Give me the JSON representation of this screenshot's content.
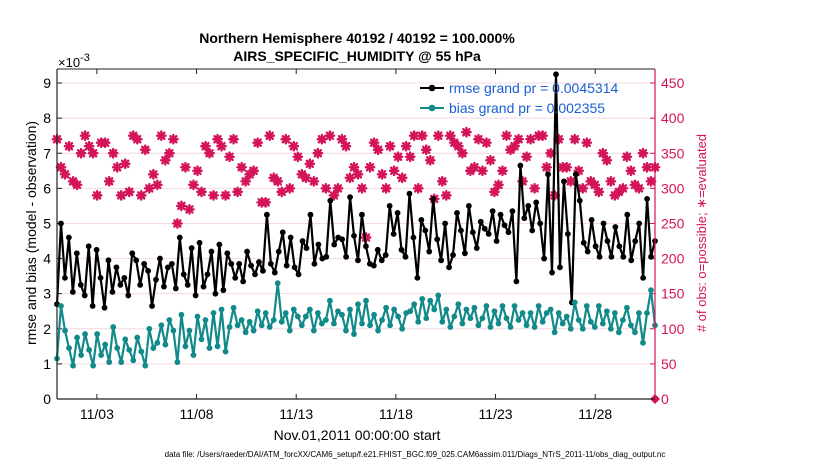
{
  "chart_data": {
    "type": "line",
    "title": "Northern Hemisphere 40192 / 40192 = 100.000%",
    "subtitle": "AIRS_SPECIFIC_HUMIDITY @ 55 hPa",
    "xlabel": "Nov.01,2011 00:00:00 start",
    "ylabel": "rmse and bias (model - observation)",
    "y2label": "# of obs: o=possible; ∗=evaluated",
    "exponent_label": "×10",
    "exponent_value": "-3",
    "xlim": [
      1,
      31
    ],
    "ylim": [
      0,
      9.4
    ],
    "y2lim": [
      0,
      470
    ],
    "x_ticks": [
      3,
      8,
      13,
      18,
      23,
      28
    ],
    "x_tick_labels": [
      "11/03",
      "11/08",
      "11/13",
      "11/18",
      "11/23",
      "11/28"
    ],
    "y_ticks": [
      0,
      1,
      2,
      3,
      4,
      5,
      6,
      7,
      8,
      9
    ],
    "y_tick_labels": [
      "0",
      "1",
      "2",
      "3",
      "4",
      "5",
      "6",
      "7",
      "8",
      "9"
    ],
    "y2_ticks": [
      0,
      50,
      100,
      150,
      200,
      250,
      300,
      350,
      400,
      450
    ],
    "y2_tick_labels": [
      "0",
      "50",
      "100",
      "150",
      "200",
      "250",
      "300",
      "350",
      "400",
      "450"
    ],
    "legend_position": "top-right",
    "series": [
      {
        "name": "rmse grand pr = 0.0045314",
        "color": "#000000",
        "marker": "circle",
        "values": [
          2.7,
          5.0,
          3.45,
          4.6,
          3.05,
          4.15,
          3.25,
          2.95,
          4.35,
          2.65,
          4.25,
          3.45,
          2.6,
          3.95,
          3.05,
          3.75,
          3.25,
          3.45,
          2.95,
          4.15,
          3.95,
          3.25,
          3.85,
          3.65,
          2.65,
          3.4,
          4.0,
          3.2,
          3.75,
          3.85,
          3.15,
          4.6,
          3.55,
          3.25,
          4.3,
          2.95,
          4.45,
          3.2,
          3.55,
          4.2,
          3.0,
          4.4,
          3.1,
          4.15,
          3.85,
          3.45,
          3.85,
          3.35,
          4.2,
          3.8,
          3.55,
          3.9,
          3.65,
          5.25,
          3.85,
          3.6,
          4.2,
          4.75,
          3.8,
          4.6,
          3.75,
          3.55,
          4.5,
          4.3,
          5.25,
          3.85,
          4.4,
          4.0,
          4.05,
          5.65,
          4.4,
          4.6,
          4.55,
          4.05,
          5.75,
          4.65,
          3.95,
          5.25,
          4.35,
          3.85,
          3.8,
          4.25,
          3.95,
          4.1,
          5.5,
          4.7,
          5.3,
          4.25,
          4.05,
          5.85,
          4.6,
          3.45,
          5.1,
          4.8,
          4.2,
          5.7,
          4.55,
          3.95,
          5.0,
          3.75,
          4.1,
          5.3,
          4.8,
          4.15,
          5.5,
          4.75,
          4.3,
          5.05,
          4.85,
          4.7,
          5.35,
          4.5,
          5.25,
          4.95,
          4.75,
          5.35,
          3.35,
          6.65,
          5.15,
          5.5,
          4.8,
          5.6,
          5.0,
          4.0,
          6.4,
          3.6,
          9.25,
          3.75,
          6.2,
          4.7,
          2.75,
          6.4,
          5.65,
          4.45,
          4.2,
          5.1,
          4.35,
          4.05,
          5.0,
          4.5,
          4.05,
          4.9,
          4.35,
          4.05,
          5.25,
          3.95,
          4.5,
          5.0,
          3.45,
          5.7,
          4.05,
          4.5
        ]
      },
      {
        "name": "bias grand pr = 0.002355",
        "color": "#128a8a",
        "marker": "circle",
        "values": [
          1.15,
          2.65,
          1.95,
          1.45,
          0.95,
          1.75,
          1.25,
          1.85,
          1.4,
          0.95,
          1.85,
          1.25,
          1.55,
          1.05,
          2.05,
          1.45,
          1.05,
          1.7,
          1.4,
          1.1,
          1.75,
          1.35,
          0.95,
          2.0,
          1.45,
          1.6,
          2.1,
          1.55,
          2.25,
          1.95,
          1.05,
          2.4,
          1.5,
          1.95,
          1.25,
          2.35,
          1.7,
          2.25,
          1.45,
          2.45,
          1.5,
          2.55,
          1.35,
          2.05,
          2.6,
          2.1,
          2.25,
          1.9,
          2.2,
          1.95,
          2.5,
          2.1,
          2.45,
          2.05,
          2.25,
          3.3,
          2.2,
          2.45,
          1.95,
          2.55,
          2.35,
          2.1,
          2.35,
          2.55,
          1.95,
          2.45,
          2.15,
          2.25,
          2.8,
          2.15,
          2.5,
          2.4,
          1.95,
          2.55,
          1.85,
          2.7,
          2.15,
          2.8,
          2.1,
          2.4,
          1.95,
          2.25,
          2.6,
          2.1,
          2.55,
          2.35,
          2.0,
          2.45,
          2.5,
          2.7,
          2.2,
          2.85,
          2.3,
          2.8,
          2.55,
          2.95,
          2.2,
          2.55,
          2.05,
          2.35,
          2.7,
          2.15,
          2.55,
          2.3,
          2.6,
          2.1,
          2.3,
          2.65,
          2.05,
          2.5,
          2.15,
          2.65,
          2.3,
          2.05,
          2.65,
          2.25,
          2.45,
          2.1,
          2.45,
          2.05,
          2.65,
          2.2,
          2.45,
          2.55,
          1.9,
          2.45,
          2.15,
          2.35,
          2.0,
          2.75,
          2.25,
          2.0,
          2.65,
          2.2,
          2.05,
          2.65,
          2.15,
          2.5,
          2.0,
          2.45,
          1.9,
          2.25,
          2.6,
          2.1,
          1.9,
          2.45,
          1.6,
          2.45,
          3.1,
          2.1
        ]
      }
    ],
    "obs_evaluated": {
      "name": "# of obs evaluated",
      "color": "#d4145a",
      "marker": "star",
      "values": [
        370,
        330,
        320,
        360,
        310,
        305,
        350,
        375,
        360,
        350,
        290,
        365,
        365,
        310,
        350,
        330,
        290,
        335,
        295,
        375,
        370,
        290,
        355,
        300,
        320,
        305,
        375,
        340,
        350,
        370,
        250,
        275,
        330,
        270,
        305,
        325,
        295,
        360,
        350,
        290,
        370,
        360,
        290,
        345,
        370,
        295,
        330,
        310,
        320,
        325,
        365,
        280,
        280,
        375,
        315,
        310,
        295,
        370,
        300,
        360,
        345,
        320,
        315,
        335,
        310,
        350,
        370,
        300,
        375,
        290,
        300,
        370,
        360,
        315,
        330,
        320,
        300,
        230,
        330,
        365,
        355,
        320,
        300,
        360,
        325,
        345,
        315,
        360,
        345,
        375,
        300,
        375,
        355,
        340,
        285,
        375,
        310,
        290,
        375,
        365,
        360,
        350,
        380,
        325,
        330,
        370,
        325,
        365,
        340,
        295,
        305,
        325,
        375,
        355,
        360,
        370,
        310,
        345,
        370,
        300,
        375,
        375,
        330,
        350,
        290,
        370,
        330,
        330,
        310,
        370,
        325,
        300,
        365,
        310,
        305,
        295,
        350,
        340,
        310,
        290,
        295,
        300,
        345,
        325,
        305,
        300,
        350,
        330,
        310,
        330
      ]
    },
    "obs_possible_marker": {
      "name": "# of obs possible",
      "marker": "diamond",
      "color": "#d4145a",
      "x": 31,
      "value": 0
    }
  },
  "footer": {
    "text": "data file: /Users/raeder/DAI/ATM_forcXX/CAM6_setup/f.e21.FHIST_BGC.f09_025.CAM6assim.011/Diags_NTrS_2011-11/obs_diag_output.nc"
  }
}
